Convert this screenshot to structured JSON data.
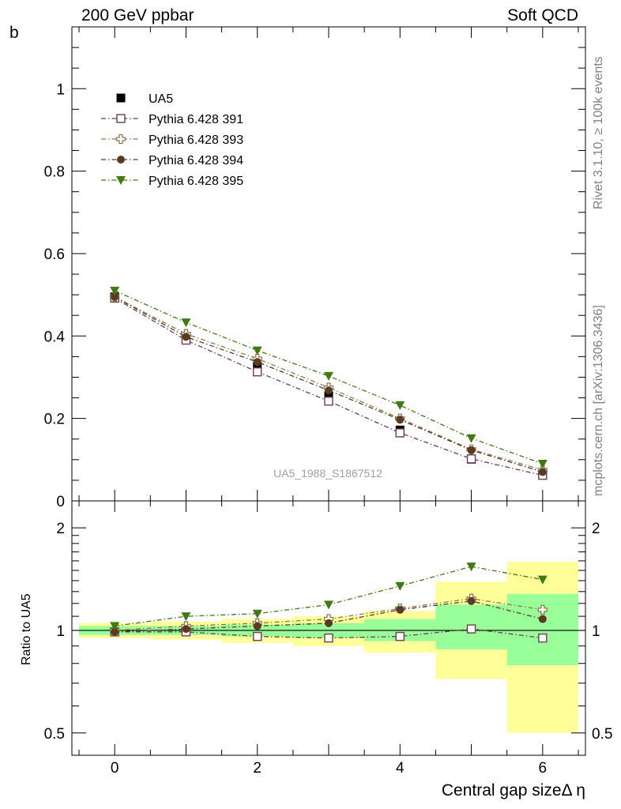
{
  "header": {
    "left": "200 GeV ppbar",
    "right": "Soft QCD"
  },
  "side": {
    "rivet": "Rivet 3.1.10, ≥ 100k events",
    "mcplots": "mcplots.cern.ch [arXiv:1306.3436]"
  },
  "colors": {
    "data": "#000000",
    "p391": "#6e3b55",
    "p393": "#8c7a4f",
    "p394": "#5b3a20",
    "p395": "#3f7a12",
    "band_outer": "#ffff99",
    "band_inner": "#99ff99"
  },
  "chart_data": [
    {
      "type": "line",
      "ylabel": "b",
      "ylim": [
        0,
        1.15
      ],
      "xlim": [
        -0.6,
        6.6
      ],
      "yticks": [
        0,
        0.2,
        0.4,
        0.6,
        0.8,
        1
      ],
      "ytick_labels": [
        "0",
        "0.2",
        "0.4",
        "0.6",
        "0.8",
        "1"
      ],
      "watermark": "UA5_1988_S1867512",
      "legend_position": "top-left",
      "x": [
        0,
        1,
        2,
        3,
        4,
        5,
        6
      ],
      "series": [
        {
          "name": "UA5",
          "marker": "filled-square",
          "values": [
            0.495,
            0.393,
            0.327,
            0.255,
            0.172,
            0.101,
            0.065
          ]
        },
        {
          "name": "Pythia 6.428 391",
          "marker": "open-square",
          "values": [
            0.492,
            0.39,
            0.313,
            0.242,
            0.165,
            0.102,
            0.062
          ]
        },
        {
          "name": "Pythia 6.428 393",
          "marker": "open-cross",
          "values": [
            0.495,
            0.405,
            0.345,
            0.275,
            0.2,
            0.125,
            0.075
          ]
        },
        {
          "name": "Pythia 6.428 394",
          "marker": "filled-circle",
          "values": [
            0.495,
            0.398,
            0.337,
            0.268,
            0.197,
            0.123,
            0.07
          ]
        },
        {
          "name": "Pythia 6.428 395",
          "marker": "filled-triangle-down",
          "values": [
            0.51,
            0.433,
            0.365,
            0.303,
            0.232,
            0.152,
            0.09
          ]
        }
      ]
    },
    {
      "type": "line",
      "ylabel": "Ratio to UA5",
      "xlabel": "Central gap sizeΔ η",
      "scale": "log",
      "ylim": [
        0.43,
        2.4
      ],
      "xlim": [
        -0.6,
        6.6
      ],
      "yticks": [
        0.5,
        1,
        2
      ],
      "ytick_labels": [
        "0.5",
        "1",
        "2"
      ],
      "xticks": [
        0,
        2,
        4,
        6
      ],
      "xtick_labels": [
        "0",
        "2",
        "4",
        "6"
      ],
      "x": [
        0,
        1,
        2,
        3,
        4,
        5,
        6
      ],
      "band_outer": [
        [
          0.95,
          1.05
        ],
        [
          0.94,
          1.06
        ],
        [
          0.92,
          1.08
        ],
        [
          0.9,
          1.1
        ],
        [
          0.86,
          1.14
        ],
        [
          0.72,
          1.39
        ],
        [
          0.5,
          1.59
        ]
      ],
      "band_inner": [
        [
          0.97,
          1.03
        ],
        [
          0.97,
          1.03
        ],
        [
          0.96,
          1.04
        ],
        [
          0.95,
          1.05
        ],
        [
          0.93,
          1.08
        ],
        [
          0.88,
          1.19
        ],
        [
          0.79,
          1.28
        ]
      ],
      "series": [
        {
          "name": "Pythia 6.428 391",
          "marker": "open-square",
          "values": [
            0.99,
            0.99,
            0.96,
            0.95,
            0.96,
            1.01,
            0.95
          ]
        },
        {
          "name": "Pythia 6.428 393",
          "marker": "open-cross",
          "values": [
            1.0,
            1.03,
            1.05,
            1.08,
            1.16,
            1.24,
            1.15
          ]
        },
        {
          "name": "Pythia 6.428 394",
          "marker": "filled-circle",
          "values": [
            0.99,
            1.01,
            1.03,
            1.05,
            1.15,
            1.22,
            1.08
          ]
        },
        {
          "name": "Pythia 6.428 395",
          "marker": "filled-triangle-down",
          "values": [
            1.03,
            1.1,
            1.12,
            1.19,
            1.35,
            1.54,
            1.41
          ]
        }
      ]
    }
  ]
}
